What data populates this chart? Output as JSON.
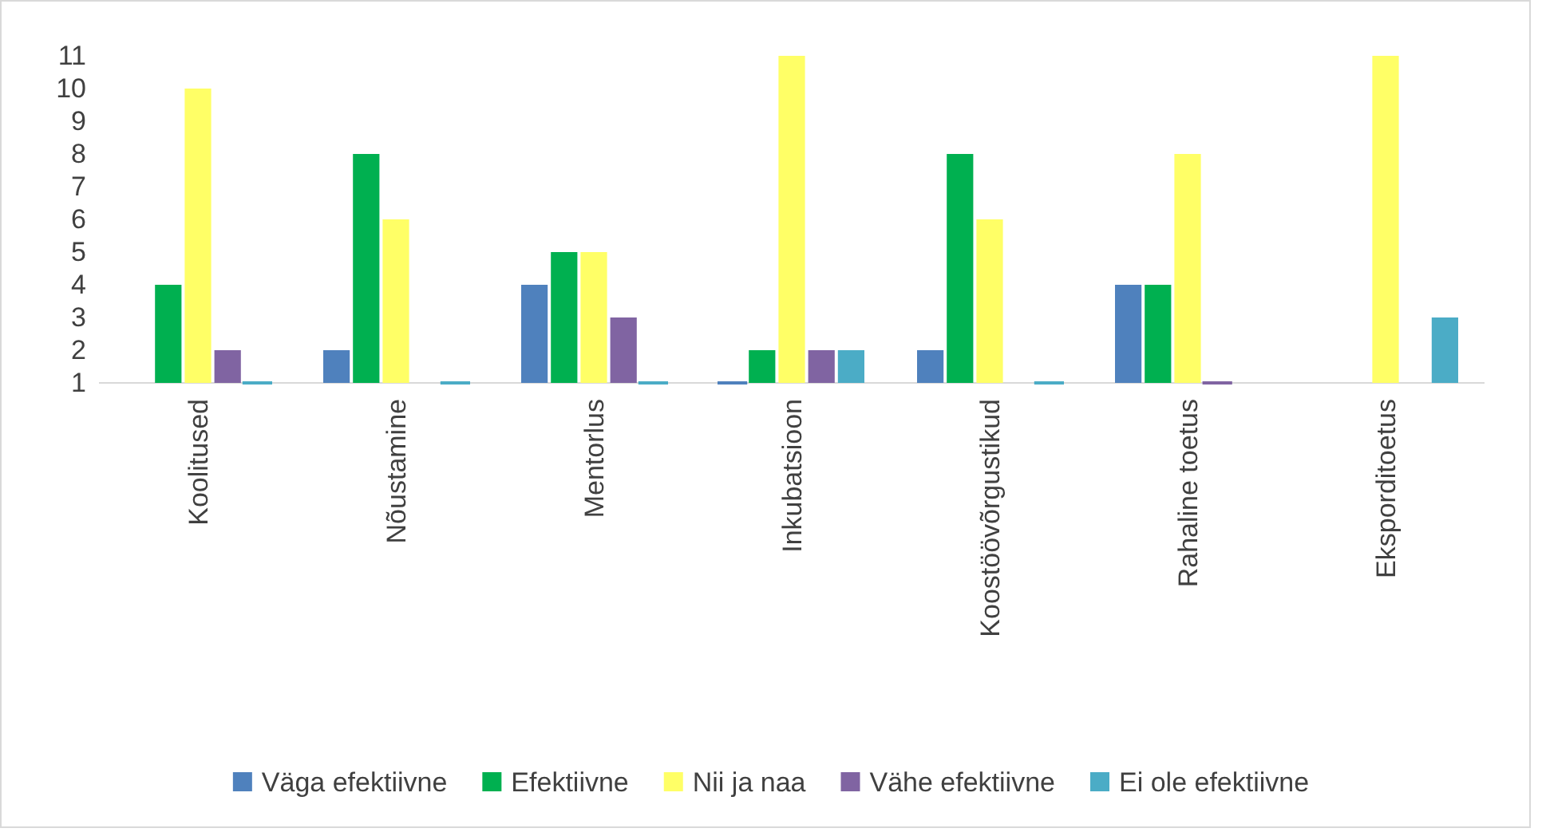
{
  "chart_data": {
    "type": "bar",
    "categories": [
      "Koolitused",
      "Nõustamine",
      "Mentorlus",
      "Inkubatsioon",
      "Koostöövõrgustikud",
      "Rahaline toetus",
      "Eksporditoetus"
    ],
    "series": [
      {
        "name": "Väga efektiivne",
        "color": "#4f81bd",
        "values": [
          null,
          2,
          4,
          1,
          2,
          4,
          null
        ]
      },
      {
        "name": "Efektiivne",
        "color": "#00b050",
        "values": [
          4,
          8,
          5,
          2,
          8,
          4,
          null
        ]
      },
      {
        "name": "Nii ja naa",
        "color": "#ffff66",
        "values": [
          10,
          6,
          5,
          11,
          6,
          8,
          11
        ]
      },
      {
        "name": "Vähe efektiivne",
        "color": "#8064a2",
        "values": [
          2,
          null,
          3,
          2,
          null,
          1,
          null
        ]
      },
      {
        "name": "Ei ole efektiivne",
        "color": "#4bacc6",
        "values": [
          1,
          1,
          1,
          2,
          1,
          null,
          3
        ]
      }
    ],
    "ylim": [
      1,
      11
    ],
    "yticks": [
      1,
      2,
      3,
      4,
      5,
      6,
      7,
      8,
      9,
      10,
      11
    ],
    "grid": false,
    "legend": "bottom"
  }
}
